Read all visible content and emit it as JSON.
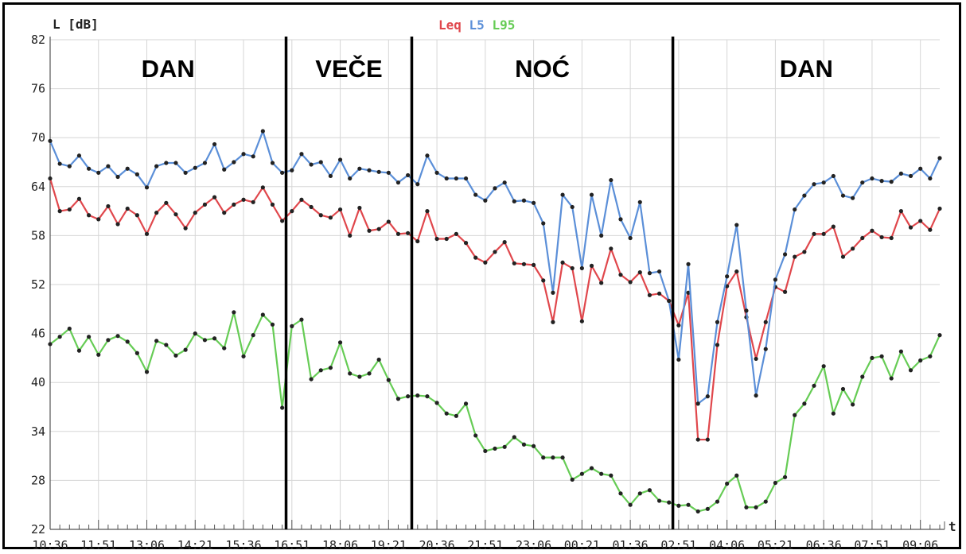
{
  "chart_data": {
    "type": "line",
    "ylabel": "L [dB]",
    "xlabel": "t",
    "ylim": [
      22,
      82
    ],
    "yticks": [
      22,
      28,
      34,
      40,
      46,
      52,
      58,
      64,
      70,
      76,
      82
    ],
    "x_tick_labels": [
      "10:36",
      "11:51",
      "13:06",
      "14:21",
      "15:36",
      "16:51",
      "18:06",
      "19:21",
      "20:36",
      "21:51",
      "23:06",
      "00:21",
      "01:36",
      "02:51",
      "04:06",
      "05:21",
      "06:36",
      "07:51",
      "09:06"
    ],
    "grid": true,
    "legend_position": "top-center",
    "periods": [
      {
        "label": "DAN",
        "start": 0,
        "end": 24
      },
      {
        "label": "VEČE",
        "start": 24,
        "end": 37
      },
      {
        "label": "NOĆ",
        "start": 37,
        "end": 64
      },
      {
        "label": "DAN",
        "start": 64,
        "end": 76
      }
    ],
    "period_boundaries": [
      24,
      37,
      64
    ],
    "series": [
      {
        "name": "Leq",
        "color": "#e0474c",
        "values": [
          65,
          61,
          61.2,
          62.5,
          60.5,
          60,
          61.6,
          59.4,
          61.3,
          60.5,
          58.2,
          60.8,
          62,
          60.6,
          58.9,
          60.8,
          61.8,
          62.7,
          60.8,
          61.8,
          62.4,
          62.1,
          63.9,
          61.8,
          59.8,
          61,
          62.4,
          61.5,
          60.5,
          60.2,
          61.2,
          58,
          61.4,
          58.6,
          58.8,
          59.7,
          58.2,
          58.3,
          57.3,
          61,
          57.6,
          57.6,
          58.2,
          57.1,
          55.3,
          54.7,
          56,
          57.2,
          54.6,
          54.5,
          54.4,
          52.5,
          47.4,
          54.7,
          54,
          47.5,
          54.3,
          52.2,
          56.4,
          53.2,
          52.3,
          53.5,
          50.7,
          50.9,
          50,
          47,
          51,
          33,
          33,
          44.6,
          51.8,
          53.6,
          48,
          42.9,
          47.4,
          51.7,
          51.1,
          55.4,
          56,
          58.2,
          58.2,
          59.1,
          55.4,
          56.4,
          57.7,
          58.6,
          57.8,
          57.7,
          61,
          59,
          59.8,
          58.7,
          61.3
        ]
      },
      {
        "name": "L5",
        "color": "#5b8fd8",
        "values": [
          69.6,
          66.8,
          66.5,
          67.8,
          66.2,
          65.7,
          66.5,
          65.2,
          66.2,
          65.5,
          63.9,
          66.5,
          66.9,
          66.9,
          65.7,
          66.3,
          66.9,
          69.2,
          66.1,
          67,
          68,
          67.7,
          70.8,
          66.9,
          65.7,
          66,
          68,
          66.7,
          67,
          65.3,
          67.3,
          65,
          66.2,
          66,
          65.8,
          65.7,
          64.5,
          65.4,
          64.3,
          67.8,
          65.7,
          65,
          65,
          65,
          63,
          62.3,
          63.8,
          64.5,
          62.2,
          62.3,
          62,
          59.5,
          51,
          63,
          61.5,
          54,
          63,
          58,
          64.8,
          60,
          57.7,
          62.1,
          53.4,
          53.6,
          50,
          42.8,
          54.5,
          37.4,
          38.3,
          47.4,
          53,
          59.3,
          48.8,
          38.4,
          44.1,
          52.6,
          55.7,
          61.2,
          62.9,
          64.3,
          64.5,
          65.3,
          62.9,
          62.6,
          64.5,
          65,
          64.7,
          64.6,
          65.6,
          65.3,
          66.2,
          65,
          67.5
        ]
      },
      {
        "name": "L95",
        "color": "#66cc55",
        "values": [
          44.7,
          45.6,
          46.6,
          43.9,
          45.6,
          43.4,
          45.2,
          45.7,
          45,
          43.6,
          41.3,
          45.1,
          44.6,
          43.3,
          44,
          46,
          45.2,
          45.4,
          44.2,
          48.6,
          43.2,
          45.8,
          48.3,
          47.1,
          36.9,
          46.9,
          47.7,
          40.4,
          41.5,
          41.8,
          44.9,
          41.1,
          40.7,
          41.1,
          42.8,
          40.3,
          38,
          38.3,
          38.4,
          38.3,
          37.5,
          36.2,
          35.9,
          37.4,
          33.5,
          31.6,
          31.9,
          32.1,
          33.3,
          32.4,
          32.2,
          30.8,
          30.8,
          30.8,
          28.1,
          28.8,
          29.5,
          28.8,
          28.6,
          26.4,
          25,
          26.4,
          26.8,
          25.5,
          25.3,
          24.9,
          25,
          24.2,
          24.5,
          25.4,
          27.6,
          28.6,
          24.7,
          24.7,
          25.4,
          27.7,
          28.4,
          36,
          37.4,
          39.6,
          42,
          36.2,
          39.2,
          37.3,
          40.7,
          43,
          43.2,
          40.5,
          43.8,
          41.5,
          42.7,
          43.2,
          45.8
        ]
      }
    ]
  }
}
